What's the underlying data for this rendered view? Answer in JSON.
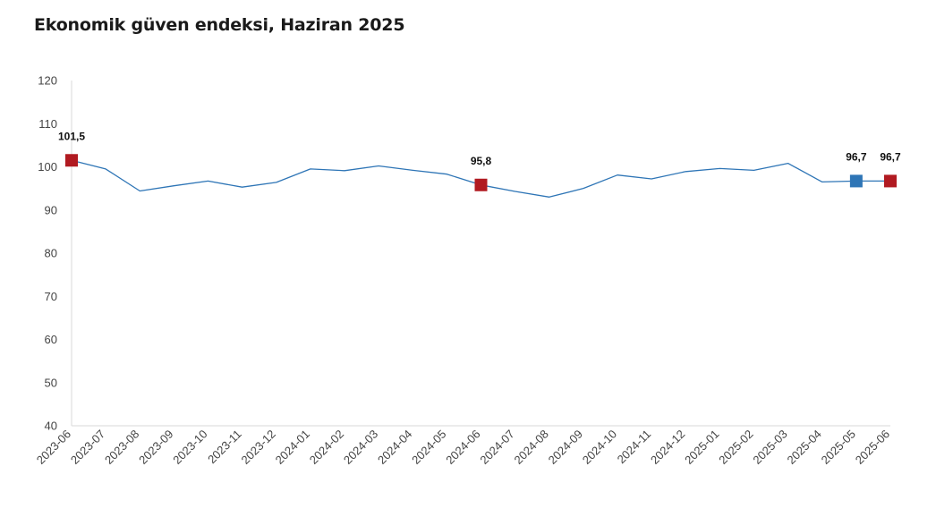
{
  "chart_data": {
    "type": "line",
    "title": "Ekonomik güven endeksi, Haziran 2025",
    "xlabel": "",
    "ylabel": "",
    "ylim": [
      40,
      120
    ],
    "yticks": [
      40,
      50,
      60,
      70,
      80,
      90,
      100,
      110,
      120
    ],
    "grid": false,
    "categories": [
      "2023-06",
      "2023-07",
      "2023-08",
      "2023-09",
      "2023-10",
      "2023-11",
      "2023-12",
      "2024-01",
      "2024-02",
      "2024-03",
      "2024-04",
      "2024-05",
      "2024-06",
      "2024-07",
      "2024-08",
      "2024-09",
      "2024-10",
      "2024-11",
      "2024-12",
      "2025-01",
      "2025-02",
      "2025-03",
      "2025-04",
      "2025-05",
      "2025-06"
    ],
    "series": [
      {
        "values": [
          101.5,
          99.5,
          94.4,
          95.6,
          96.7,
          95.3,
          96.4,
          99.5,
          99.1,
          100.2,
          99.2,
          98.3,
          95.8,
          94.3,
          93.0,
          95.0,
          98.1,
          97.2,
          98.9,
          99.6,
          99.2,
          100.8,
          96.5,
          96.7,
          96.7
        ],
        "color": "#2e75b6"
      }
    ],
    "highlighted_points": [
      {
        "category": "2023-06",
        "value": 101.5,
        "label": "101,5",
        "color": "#b11a21"
      },
      {
        "category": "2024-06",
        "value": 95.8,
        "label": "95,8",
        "color": "#b11a21"
      },
      {
        "category": "2025-05",
        "value": 96.7,
        "label": "96,7",
        "color": "#2e75b6"
      },
      {
        "category": "2025-06",
        "value": 96.7,
        "label": "96,7",
        "color": "#b11a21"
      }
    ]
  }
}
